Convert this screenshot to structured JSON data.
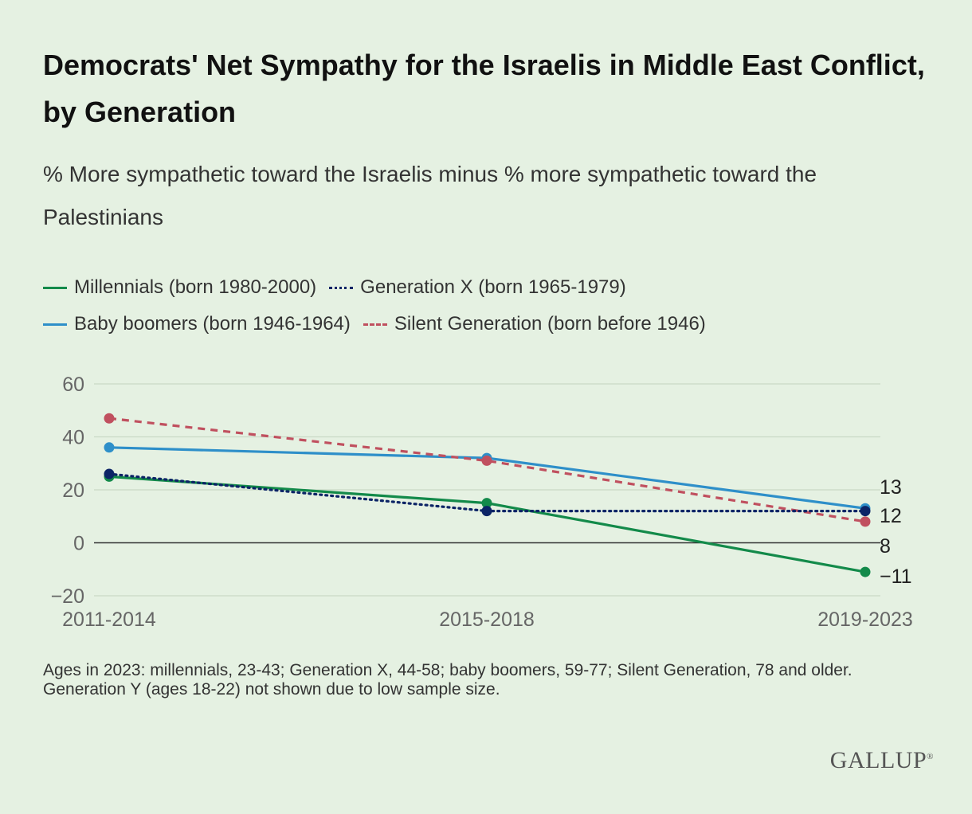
{
  "chart_data": {
    "type": "line",
    "title": "Democrats' Net Sympathy for the Israelis in Middle East Conflict, by Generation",
    "subtitle": "% More sympathetic toward the Israelis minus % more sympathetic toward the Palestinians",
    "categories": [
      "2011-2014",
      "2015-2018",
      "2019-2023"
    ],
    "ylim": [
      -20,
      60
    ],
    "yticks": [
      60,
      40,
      20,
      0,
      -20
    ],
    "ytick_labels": [
      "60",
      "40",
      "20",
      "0",
      "−20"
    ],
    "grid": true,
    "legend_placement": "top",
    "series": [
      {
        "name": "Millennials (born 1980-2000)",
        "values": [
          25,
          15,
          -11
        ],
        "color": "#138a4a",
        "style": "solid",
        "end_label": "−11"
      },
      {
        "name": "Generation X (born 1965-1979)",
        "values": [
          26,
          12,
          12
        ],
        "color": "#0c2466",
        "style": "dotted",
        "end_label": "12"
      },
      {
        "name": "Baby boomers (born 1946-1964)",
        "values": [
          36,
          32,
          13
        ],
        "color": "#2e8fc9",
        "style": "solid",
        "end_label": "13"
      },
      {
        "name": "Silent Generation (born before 1946)",
        "values": [
          47,
          31,
          8
        ],
        "color": "#c0505f",
        "style": "dashed",
        "end_label": "8"
      }
    ]
  },
  "footnote": {
    "line1": "Ages in 2023: millennials, 23-43; Generation X, 44-58; baby boomers, 59-77; Silent Generation, 78 and older.",
    "line2": "Generation Y (ages 18-22) not shown due to low sample size."
  },
  "brand": "GALLUP"
}
